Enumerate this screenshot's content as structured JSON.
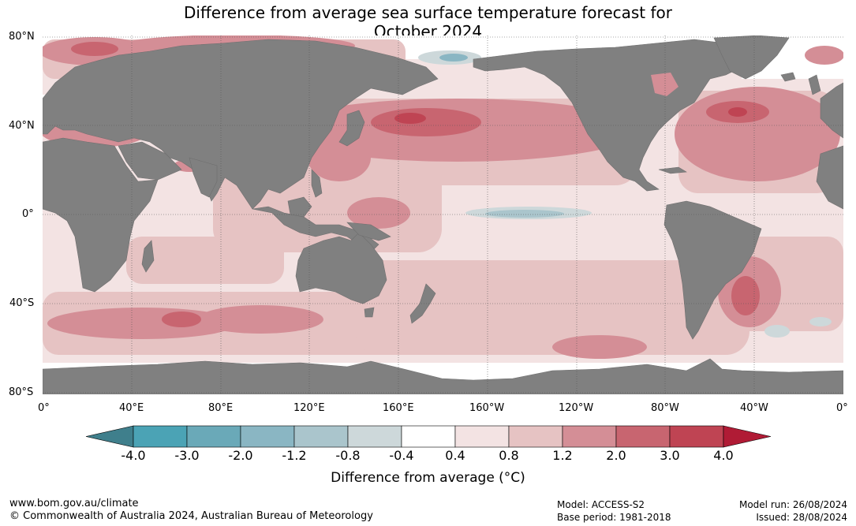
{
  "title": {
    "line1": "Difference from average sea surface temperature forecast for",
    "line2": "October 2024"
  },
  "map": {
    "projection": "equirectangular",
    "central_meridian": "180°",
    "land_color": "#808080",
    "ocean_base_color": "#ffffff",
    "lat_labels": [
      "80°N",
      "40°N",
      "0°",
      "40°S",
      "80°S"
    ],
    "lon_labels": [
      "0°",
      "40°E",
      "80°E",
      "120°E",
      "160°E",
      "160°W",
      "120°W",
      "80°W",
      "40°W",
      "0°"
    ],
    "anomaly_regions": [
      {
        "name": "north-pacific-warm-band",
        "lon": [
          150,
          -130
        ],
        "lat": [
          30,
          50
        ],
        "value": 3.0
      },
      {
        "name": "north-atlantic-warm-pool",
        "lon": [
          -75,
          -20
        ],
        "lat": [
          25,
          55
        ],
        "value": 2.0
      },
      {
        "name": "equatorial-pacific-cool-tongue",
        "lon": [
          -170,
          -100
        ],
        "lat": [
          -2,
          3
        ],
        "value": -1.2
      },
      {
        "name": "bering-sea-cool-patch",
        "lon": [
          -180,
          -165
        ],
        "lat": [
          62,
          68
        ],
        "value": -1.2
      },
      {
        "name": "southwest-atlantic-warm",
        "lon": [
          -60,
          -35
        ],
        "lat": [
          -50,
          -25
        ],
        "value": 3.0
      },
      {
        "name": "southern-ocean-warm-belt",
        "lon": [
          0,
          180
        ],
        "lat": [
          -55,
          -35
        ],
        "value": 2.0
      },
      {
        "name": "south-atlantic-cool-patch",
        "lon": [
          -40,
          -25
        ],
        "lat": [
          -55,
          -45
        ],
        "value": -0.8
      }
    ]
  },
  "colorbar": {
    "title": "Difference from average (°C)",
    "tick_labels": [
      "-4.0",
      "-3.0",
      "-2.0",
      "-1.2",
      "-0.8",
      "-0.4",
      "0.4",
      "0.8",
      "1.2",
      "2.0",
      "3.0",
      "4.0"
    ],
    "colors": [
      "#3f7f8c",
      "#4ba3b5",
      "#6aa9b8",
      "#8ab6c3",
      "#aac5cc",
      "#cdd8da",
      "#ffffff",
      "#f3e3e3",
      "#e6c3c3",
      "#d48e96",
      "#c86570",
      "#bf4453",
      "#b01b35"
    ]
  },
  "footer": {
    "website": "www.bom.gov.au/climate",
    "copyright": "© Commonwealth of Australia 2024, Australian Bureau of Meteorology",
    "model": "Model: ACCESS-S2",
    "base_period": "Base period: 1981-2018",
    "model_run": "Model run: 26/08/2024",
    "issued": "Issued: 28/08/2024"
  }
}
